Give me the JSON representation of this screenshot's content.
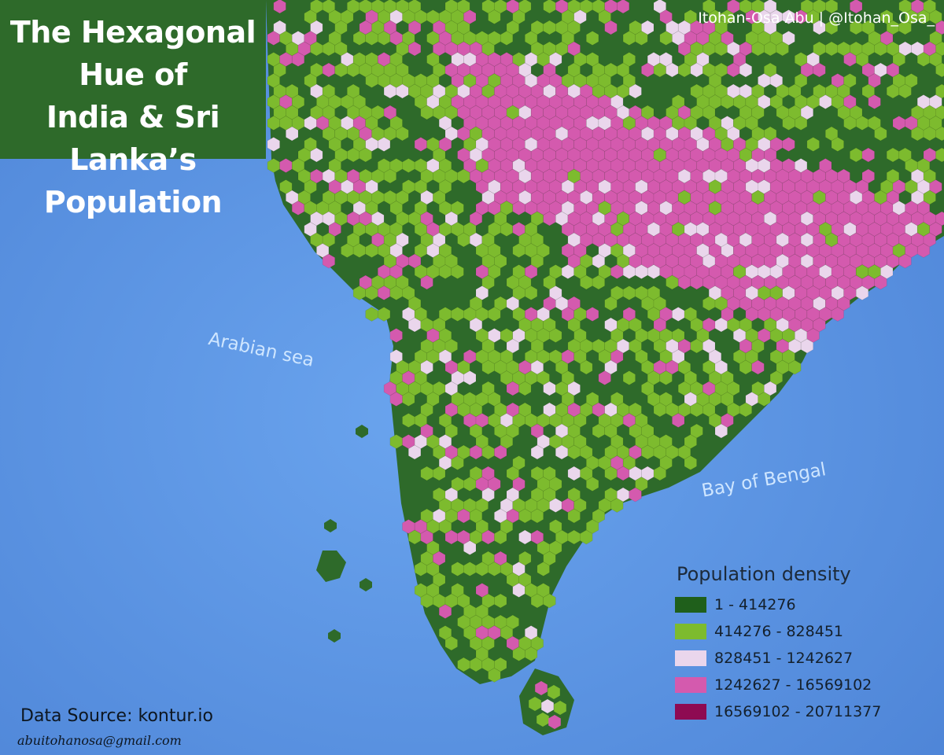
{
  "title": {
    "line1": "The Hexagonal Hue of",
    "line2": "India & Sri Lanka’s",
    "line3": "Population"
  },
  "credit": "Itohan-Osa Abu | @Itohan_Osa_",
  "sea_labels": {
    "arabian": "Arabian sea",
    "bengal": "Bay of Bengal"
  },
  "legend": {
    "title": "Population density",
    "items": [
      {
        "label": "1 - 414276",
        "color": "#1f5f1b"
      },
      {
        "label": "414276 - 828451",
        "color": "#7dbb2e"
      },
      {
        "label": "828451 - 1242627",
        "color": "#ead6ec"
      },
      {
        "label": "1242627 - 16569102",
        "color": "#d45aae"
      },
      {
        "label": "16569102 - 20711377",
        "color": "#8e0a52"
      }
    ]
  },
  "colors": {
    "ocean": "#5a93e3",
    "land": "#2e6a2a",
    "title_panel": "#2e6a2a"
  },
  "footer": {
    "source": "Data Source: kontur.io",
    "email": "abuitohanosa@gmail.com"
  }
}
